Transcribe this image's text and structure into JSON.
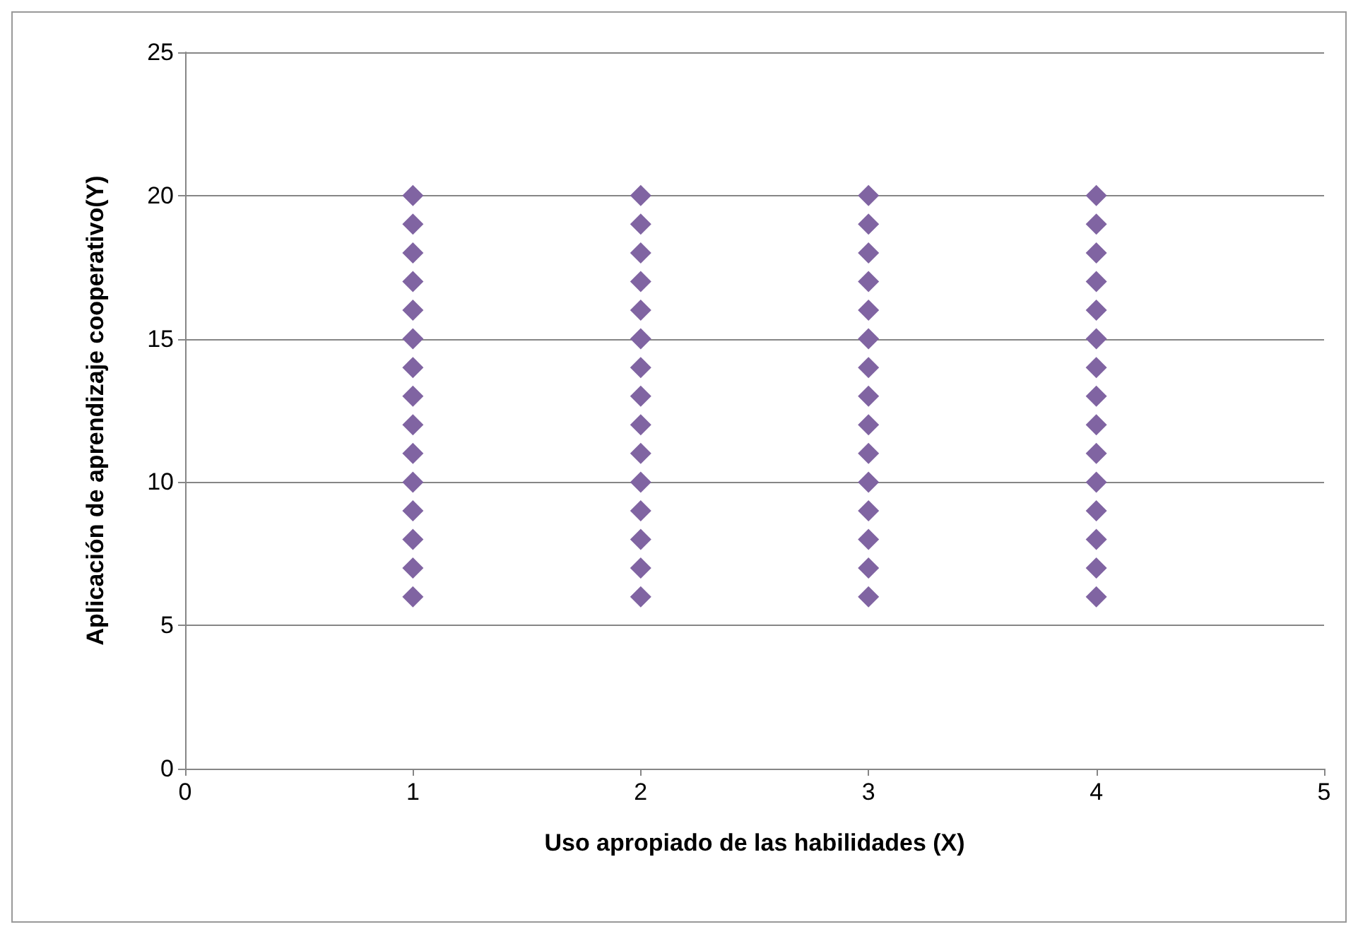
{
  "chart_data": {
    "type": "scatter",
    "xlabel": "Uso apropiado de las habilidades (X)",
    "ylabel": "Aplicación de aprendizaje cooperativo(Y)",
    "marker": "diamond",
    "grid": "y",
    "xlim": [
      0,
      5
    ],
    "xticks": [
      0,
      1,
      2,
      3,
      4,
      5
    ],
    "ylim": [
      0,
      25
    ],
    "yticks": [
      0,
      5,
      10,
      15,
      20,
      25
    ],
    "series": [
      {
        "color": "#8064a2",
        "x": [
          1,
          1,
          1,
          1,
          1,
          1,
          1,
          1,
          1,
          1,
          1,
          1,
          1,
          1,
          1,
          2,
          2,
          2,
          2,
          2,
          2,
          2,
          2,
          2,
          2,
          2,
          2,
          2,
          2,
          2,
          3,
          3,
          3,
          3,
          3,
          3,
          3,
          3,
          3,
          3,
          3,
          3,
          3,
          3,
          3,
          4,
          4,
          4,
          4,
          4,
          4,
          4,
          4,
          4,
          4,
          4,
          4,
          4,
          4,
          4
        ],
        "values": [
          6,
          7,
          8,
          9,
          10,
          11,
          12,
          13,
          14,
          15,
          16,
          17,
          18,
          19,
          20,
          6,
          7,
          8,
          9,
          10,
          11,
          12,
          13,
          14,
          15,
          16,
          17,
          18,
          19,
          20,
          6,
          7,
          8,
          9,
          10,
          11,
          12,
          13,
          14,
          15,
          16,
          17,
          18,
          19,
          20,
          6,
          7,
          8,
          9,
          10,
          11,
          12,
          13,
          14,
          15,
          16,
          17,
          18,
          19,
          20
        ]
      }
    ]
  }
}
